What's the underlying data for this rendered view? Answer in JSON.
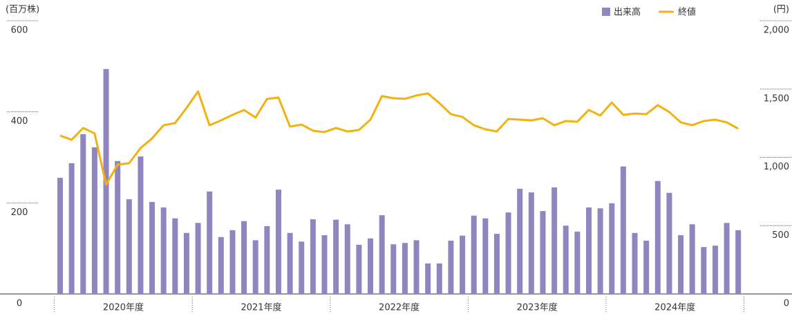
{
  "chart_data": {
    "type": "bar_line",
    "y_label": "(百万株)",
    "y2_label": "(円)",
    "categories": [
      null,
      null,
      null,
      null,
      null,
      null,
      null,
      null,
      null,
      null,
      null,
      null,
      null,
      null,
      null,
      null,
      null,
      null,
      null,
      null,
      null,
      null,
      null,
      null,
      null,
      null,
      null,
      null,
      null,
      null,
      null,
      null,
      null,
      null,
      null,
      null,
      null,
      null,
      null,
      null,
      null,
      null,
      null,
      null,
      null,
      null,
      null,
      null,
      null,
      null,
      null,
      null,
      null,
      null,
      null,
      null,
      null,
      null,
      null,
      null
    ],
    "groups": [
      "2020年度",
      "2021年度",
      "2022年度",
      "2023年度",
      "2024年度"
    ],
    "series": [
      {
        "name": "出来高",
        "type": "bar",
        "color": "#9185c0",
        "axis": "y",
        "values": [
          255,
          287,
          351,
          322,
          494,
          292,
          208,
          302,
          202,
          190,
          166,
          134,
          156,
          225,
          125,
          140,
          160,
          118,
          149,
          229,
          134,
          115,
          164,
          129,
          163,
          153,
          108,
          122,
          173,
          109,
          112,
          118,
          67,
          67,
          117,
          128,
          172,
          166,
          132,
          179,
          231,
          223,
          182,
          234,
          150,
          137,
          190,
          188,
          199,
          280,
          134,
          117,
          248,
          222,
          129,
          153,
          103,
          106,
          156,
          140
        ]
      },
      {
        "name": "終値",
        "type": "line",
        "color": "#f2b10e",
        "axis": "y2",
        "values": [
          1159,
          1129,
          1215,
          1175,
          800,
          947,
          957,
          1068,
          1139,
          1235,
          1251,
          1362,
          1483,
          1235,
          1271,
          1311,
          1347,
          1291,
          1428,
          1438,
          1225,
          1240,
          1195,
          1185,
          1215,
          1190,
          1200,
          1276,
          1448,
          1433,
          1428,
          1453,
          1468,
          1397,
          1316,
          1296,
          1235,
          1205,
          1190,
          1281,
          1276,
          1271,
          1286,
          1235,
          1266,
          1261,
          1347,
          1306,
          1402,
          1311,
          1321,
          1316,
          1382,
          1332,
          1256,
          1235,
          1266,
          1276,
          1256,
          1210
        ]
      }
    ],
    "ylim": [
      0,
      600
    ],
    "yticks": [
      0,
      200,
      400,
      600
    ],
    "y2lim": [
      0,
      2000
    ],
    "y2ticks": [
      0,
      500,
      {
        "value": 1000,
        "label": "1,000"
      },
      {
        "value": 1500,
        "label": "1,500"
      },
      {
        "value": 2000,
        "label": "2,000"
      }
    ]
  }
}
